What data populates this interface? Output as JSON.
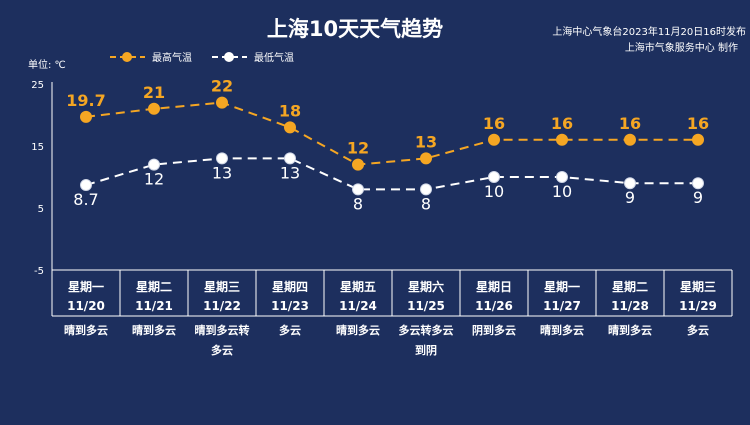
{
  "header": {
    "title": "上海10天天气趋势",
    "source_line1": "上海中心气象台2023年11月20日16时发布",
    "source_line2": "上海市气象服务中心 制作"
  },
  "colors": {
    "background": "#1d2f5e",
    "high": "#f5a623",
    "low": "#ffffff",
    "axis": "#ffffff"
  },
  "chart_data": {
    "type": "line",
    "unit_label": "单位: ℃",
    "y_ticks": [
      "25",
      "15",
      "5",
      "-5"
    ],
    "ylim": [
      -5,
      25
    ],
    "grid": false,
    "legend_position": "top-left",
    "categories": [
      {
        "weekday": "星期一",
        "date": "11/20",
        "weather": [
          "晴到多云"
        ]
      },
      {
        "weekday": "星期二",
        "date": "11/21",
        "weather": [
          "晴到多云"
        ]
      },
      {
        "weekday": "星期三",
        "date": "11/22",
        "weather": [
          "晴到多云转",
          "多云"
        ]
      },
      {
        "weekday": "星期四",
        "date": "11/23",
        "weather": [
          "多云"
        ]
      },
      {
        "weekday": "星期五",
        "date": "11/24",
        "weather": [
          "晴到多云"
        ]
      },
      {
        "weekday": "星期六",
        "date": "11/25",
        "weather": [
          "多云转多云",
          "到阴"
        ]
      },
      {
        "weekday": "星期日",
        "date": "11/26",
        "weather": [
          "阴到多云"
        ]
      },
      {
        "weekday": "星期一",
        "date": "11/27",
        "weather": [
          "晴到多云"
        ]
      },
      {
        "weekday": "星期二",
        "date": "11/28",
        "weather": [
          "晴到多云"
        ]
      },
      {
        "weekday": "星期三",
        "date": "11/29",
        "weather": [
          "多云"
        ]
      }
    ],
    "series": [
      {
        "name": "最高气温",
        "values": [
          19.7,
          21,
          22,
          18,
          12,
          13,
          16,
          16,
          16,
          16
        ]
      },
      {
        "name": "最低气温",
        "values": [
          8.7,
          12,
          13,
          13,
          8,
          8,
          10,
          10,
          9,
          9
        ]
      }
    ]
  }
}
